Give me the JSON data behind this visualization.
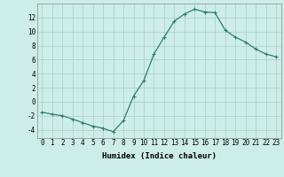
{
  "x": [
    0,
    1,
    2,
    3,
    4,
    5,
    6,
    7,
    8,
    9,
    10,
    11,
    12,
    13,
    14,
    15,
    16,
    17,
    18,
    19,
    20,
    21,
    22,
    23
  ],
  "y": [
    -1.5,
    -1.8,
    -2.0,
    -2.5,
    -3.0,
    -3.5,
    -3.8,
    -4.3,
    -2.7,
    0.8,
    3.0,
    6.8,
    9.2,
    11.5,
    12.5,
    13.2,
    12.8,
    12.7,
    10.2,
    9.2,
    8.5,
    7.5,
    6.8,
    6.4
  ],
  "line_color": "#2e7d6e",
  "marker": "+",
  "bg_color": "#cdeee8",
  "grid_color": "#aaccc6",
  "xlabel": "Humidex (Indice chaleur)",
  "yticks": [
    -4,
    -2,
    0,
    2,
    4,
    6,
    8,
    10,
    12
  ],
  "xtick_labels": [
    "0",
    "1",
    "2",
    "3",
    "4",
    "5",
    "6",
    "7",
    "8",
    "9",
    "10",
    "11",
    "12",
    "13",
    "14",
    "15",
    "16",
    "17",
    "18",
    "19",
    "20",
    "21",
    "22",
    "23"
  ],
  "xticks": [
    0,
    1,
    2,
    3,
    4,
    5,
    6,
    7,
    8,
    9,
    10,
    11,
    12,
    13,
    14,
    15,
    16,
    17,
    18,
    19,
    20,
    21,
    22,
    23
  ],
  "xlim": [
    -0.5,
    23.5
  ],
  "ylim": [
    -5.2,
    14.0
  ],
  "tick_fontsize": 5.5,
  "xlabel_fontsize": 6.5,
  "linewidth": 0.9,
  "markersize": 3.5,
  "markeredgewidth": 0.8
}
